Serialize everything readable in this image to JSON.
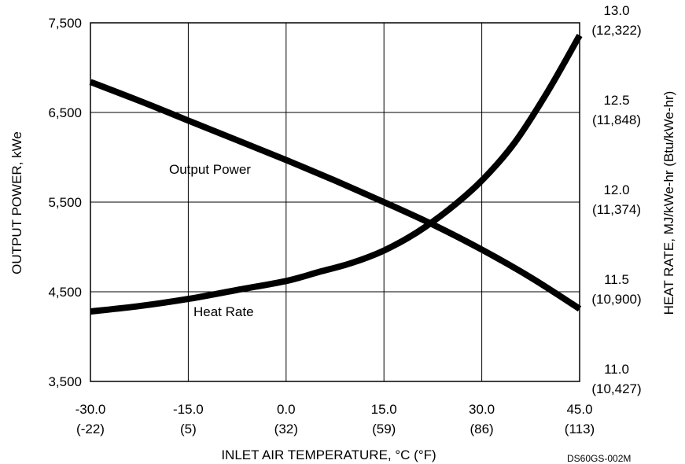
{
  "chart_data": {
    "type": "line",
    "xlabel": "INLET AIR TEMPERATURE, °C (°F)",
    "ylabel": "OUTPUT POWER, kWe",
    "y2label": "HEAT RATE, MJ/kWe-hr (Btu/kWe-hr)",
    "figure_id": "DS60GS-002M",
    "xlim": [
      -30,
      45
    ],
    "ylim": [
      3500,
      7500
    ],
    "y2lim": [
      11.0,
      13.0
    ],
    "grid": true,
    "x_ticks": [
      {
        "value": -30,
        "label": "-30.0",
        "sub": "(-22)"
      },
      {
        "value": -15,
        "label": "-15.0",
        "sub": "(5)"
      },
      {
        "value": 0,
        "label": "0.0",
        "sub": "(32)"
      },
      {
        "value": 15,
        "label": "15.0",
        "sub": "(59)"
      },
      {
        "value": 30,
        "label": "30.0",
        "sub": "(86)"
      },
      {
        "value": 45,
        "label": "45.0",
        "sub": "(113)"
      }
    ],
    "y_ticks": [
      {
        "value": 3500,
        "label": "3,500"
      },
      {
        "value": 4500,
        "label": "4,500"
      },
      {
        "value": 5500,
        "label": "5,500"
      },
      {
        "value": 6500,
        "label": "6,500"
      },
      {
        "value": 7500,
        "label": "7,500"
      }
    ],
    "y2_ticks": [
      {
        "value": 11.0,
        "label": "11.0",
        "sub": "(10,427)"
      },
      {
        "value": 11.5,
        "label": "11.5",
        "sub": "(10,900)"
      },
      {
        "value": 12.0,
        "label": "12.0",
        "sub": "(11,374)"
      },
      {
        "value": 12.5,
        "label": "12.5",
        "sub": "(11,848)"
      },
      {
        "value": 13.0,
        "label": "13.0",
        "sub": "(12,322)"
      }
    ],
    "series": [
      {
        "name": "Output Power",
        "axis": "left",
        "color": "#000000",
        "x": [
          -30,
          -22.5,
          -15,
          -7.5,
          0,
          7.5,
          15,
          22.5,
          30,
          37.5,
          45
        ],
        "values": [
          6840,
          6630,
          6410,
          6190,
          5970,
          5740,
          5500,
          5250,
          4970,
          4660,
          4310
        ]
      },
      {
        "name": "Heat Rate",
        "axis": "right",
        "color": "#000000",
        "x": [
          -30,
          -22.5,
          -15,
          -7.5,
          0,
          5,
          10,
          15,
          20,
          25,
          30,
          35,
          40,
          45
        ],
        "values": [
          11.39,
          11.42,
          11.46,
          11.51,
          11.56,
          11.61,
          11.66,
          11.73,
          11.83,
          11.96,
          12.12,
          12.33,
          12.61,
          12.93
        ]
      }
    ]
  }
}
